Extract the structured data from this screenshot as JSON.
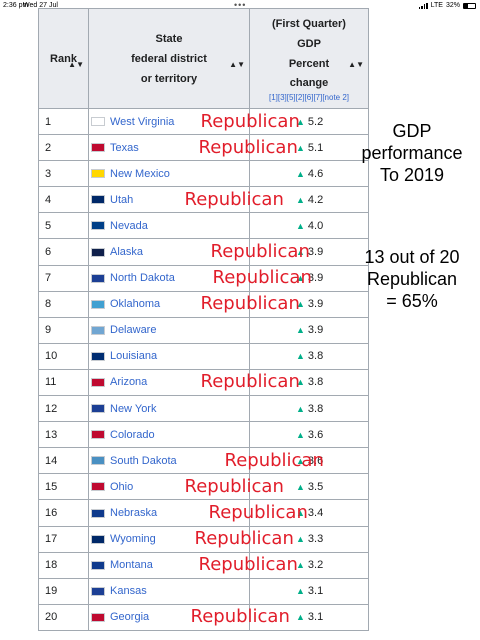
{
  "statusbar": {
    "time": "2:36 pm",
    "date": "Wed 27 Jul",
    "network": "LTE",
    "battery": "32%",
    "battery_level": 0.32,
    "battery_icon": "battery-icon",
    "signal_icon": "signal-icon"
  },
  "table": {
    "headers": {
      "rank": "Rank",
      "state_lines": [
        "State",
        "federal district",
        "or territory"
      ],
      "gdp_lines": [
        "(First Quarter)",
        "GDP",
        "Percent",
        "change"
      ],
      "refs": "[1][3][5][2][6][7][note 2]"
    },
    "sort_icon": "sort-icon",
    "trend_icon": "up-triangle-icon",
    "rows": [
      {
        "rank": "1",
        "state": "West Virginia",
        "gdp": "5.2",
        "flag": "#ffffff"
      },
      {
        "rank": "2",
        "state": "Texas",
        "gdp": "5.1",
        "flag": "#bf0a30"
      },
      {
        "rank": "3",
        "state": "New Mexico",
        "gdp": "4.6",
        "flag": "#ffd700"
      },
      {
        "rank": "4",
        "state": "Utah",
        "gdp": "4.2",
        "flag": "#002868"
      },
      {
        "rank": "5",
        "state": "Nevada",
        "gdp": "4.0",
        "flag": "#003f87"
      },
      {
        "rank": "6",
        "state": "Alaska",
        "gdp": "3.9",
        "flag": "#0f204b"
      },
      {
        "rank": "7",
        "state": "North Dakota",
        "gdp": "3.9",
        "flag": "#1c3f94"
      },
      {
        "rank": "8",
        "state": "Oklahoma",
        "gdp": "3.9",
        "flag": "#41a0d1"
      },
      {
        "rank": "9",
        "state": "Delaware",
        "gdp": "3.9",
        "flag": "#71a6d2"
      },
      {
        "rank": "10",
        "state": "Louisiana",
        "gdp": "3.8",
        "flag": "#002d72"
      },
      {
        "rank": "11",
        "state": "Arizona",
        "gdp": "3.8",
        "flag": "#bf0a30"
      },
      {
        "rank": "12",
        "state": "New York",
        "gdp": "3.8",
        "flag": "#1c3f94"
      },
      {
        "rank": "13",
        "state": "Colorado",
        "gdp": "3.6",
        "flag": "#bf0a30"
      },
      {
        "rank": "14",
        "state": "South Dakota",
        "gdp": "3.6",
        "flag": "#4a90c2"
      },
      {
        "rank": "15",
        "state": "Ohio",
        "gdp": "3.5",
        "flag": "#bf0a30"
      },
      {
        "rank": "16",
        "state": "Nebraska",
        "gdp": "3.4",
        "flag": "#0f3a8c"
      },
      {
        "rank": "17",
        "state": "Wyoming",
        "gdp": "3.3",
        "flag": "#002868"
      },
      {
        "rank": "18",
        "state": "Montana",
        "gdp": "3.2",
        "flag": "#0f3a8c"
      },
      {
        "rank": "19",
        "state": "Kansas",
        "gdp": "3.1",
        "flag": "#1c3f94"
      },
      {
        "rank": "20",
        "state": "Georgia",
        "gdp": "3.1",
        "flag": "#bf0a30"
      }
    ]
  },
  "annotations": {
    "label": "Republican",
    "color": "#e11d2a",
    "marked_ranks": [
      1,
      2,
      4,
      6,
      7,
      8,
      11,
      14,
      15,
      16,
      17,
      18,
      20
    ],
    "note1_lines": [
      "GDP",
      "performance",
      "To 2019"
    ],
    "note2_lines": [
      "13 out of 20",
      "Republican",
      "= 65%"
    ]
  }
}
